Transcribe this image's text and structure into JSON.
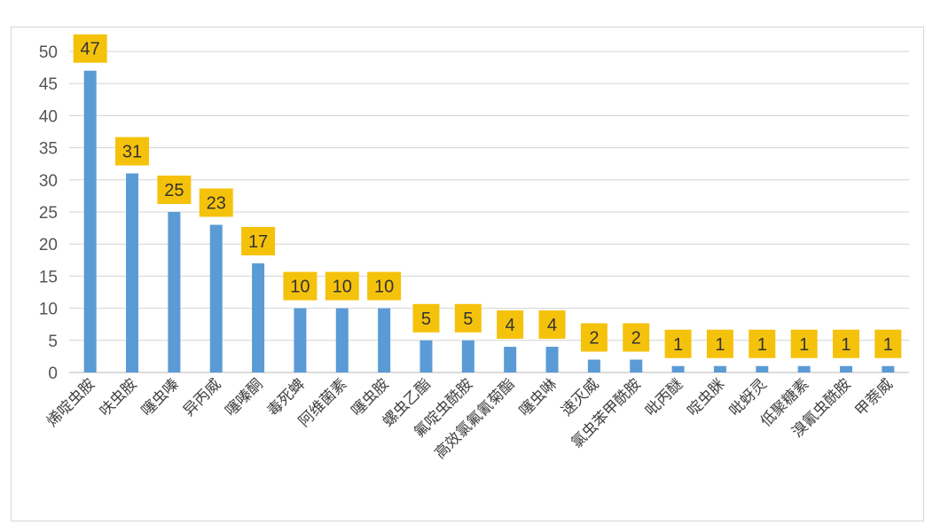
{
  "chart_data": {
    "type": "bar",
    "categories": [
      "烯啶虫胺",
      "呋虫胺",
      "噻虫嗪",
      "异丙威",
      "噻嗪酮",
      "毒死蜱",
      "阿维菌素",
      "噻虫胺",
      "螺虫乙酯",
      "氟啶虫酰胺",
      "高效氯氟氰菊酯",
      "噻虫啉",
      "速灭威",
      "氯虫苯甲酰胺",
      "吡丙醚",
      "啶虫脒",
      "吡蚜灵",
      "低聚糖素",
      "溴氰虫酰胺",
      "甲萘威"
    ],
    "values": [
      47,
      31,
      25,
      23,
      17,
      10,
      10,
      10,
      5,
      5,
      4,
      4,
      2,
      2,
      1,
      1,
      1,
      1,
      1,
      1
    ],
    "yticks": [
      0,
      5,
      10,
      15,
      20,
      25,
      30,
      35,
      40,
      45,
      50
    ],
    "ylim": [
      0,
      50
    ],
    "grid": true,
    "title": "",
    "xlabel": "",
    "ylabel": "",
    "colors": {
      "bar": "#5b9bd5",
      "label_box": "#f5c20b",
      "grid": "#d4d4d4"
    }
  }
}
